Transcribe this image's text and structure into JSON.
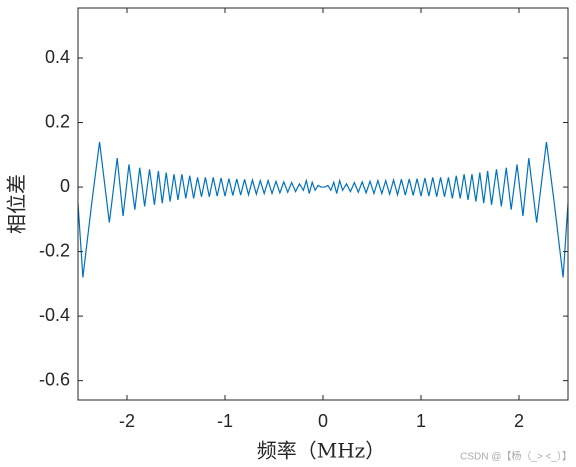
{
  "chart_data": {
    "type": "line",
    "xlabel": "频率（MHz）",
    "ylabel": "相位差",
    "watermark": "CSDN @【杨（_> <_）】",
    "xlim": [
      -2.5,
      2.5
    ],
    "ylim": [
      -0.66,
      0.555
    ],
    "xticks": [
      -2,
      -1,
      0,
      1,
      2
    ],
    "yticks": [
      -0.6,
      -0.4,
      -0.2,
      0,
      0.2,
      0.4
    ],
    "x": [
      -2.5,
      -2.45,
      -2.36,
      -2.28,
      -2.18,
      -2.1,
      -2.04,
      -1.98,
      -1.92,
      -1.87,
      -1.82,
      -1.77,
      -1.72,
      -1.68,
      -1.64,
      -1.6,
      -1.56,
      -1.52,
      -1.48,
      -1.44,
      -1.4,
      -1.36,
      -1.32,
      -1.28,
      -1.24,
      -1.2,
      -1.16,
      -1.12,
      -1.08,
      -1.04,
      -1.0,
      -0.96,
      -0.92,
      -0.88,
      -0.84,
      -0.8,
      -0.76,
      -0.72,
      -0.68,
      -0.64,
      -0.6,
      -0.56,
      -0.52,
      -0.48,
      -0.44,
      -0.4,
      -0.36,
      -0.32,
      -0.28,
      -0.24,
      -0.2,
      -0.17,
      -0.14,
      -0.11,
      -0.08,
      -0.05,
      -0.02,
      0,
      0.02,
      0.05,
      0.08,
      0.11,
      0.14,
      0.17,
      0.2,
      0.24,
      0.28,
      0.32,
      0.36,
      0.4,
      0.44,
      0.48,
      0.52,
      0.56,
      0.6,
      0.64,
      0.68,
      0.72,
      0.76,
      0.8,
      0.84,
      0.88,
      0.92,
      0.96,
      1.0,
      1.04,
      1.08,
      1.12,
      1.16,
      1.2,
      1.24,
      1.28,
      1.32,
      1.36,
      1.4,
      1.44,
      1.48,
      1.52,
      1.56,
      1.6,
      1.64,
      1.68,
      1.72,
      1.77,
      1.82,
      1.87,
      1.92,
      1.98,
      2.04,
      2.1,
      2.18,
      2.28,
      2.36,
      2.45,
      2.5
    ],
    "series": [
      {
        "color": "#0072bd",
        "values": [
          -0.05,
          -0.28,
          -0.05,
          0.14,
          -0.11,
          0.09,
          -0.09,
          0.07,
          -0.07,
          0.06,
          -0.06,
          0.055,
          -0.055,
          0.05,
          -0.05,
          0.045,
          -0.045,
          0.04,
          -0.04,
          0.04,
          -0.035,
          0.035,
          -0.035,
          0.03,
          -0.03,
          0.03,
          -0.03,
          0.03,
          -0.028,
          0.028,
          -0.028,
          0.026,
          -0.026,
          0.025,
          -0.025,
          0.024,
          -0.024,
          0.022,
          -0.022,
          0.02,
          -0.02,
          0.02,
          -0.02,
          0.018,
          -0.018,
          0.016,
          -0.016,
          0.014,
          -0.014,
          0.01,
          -0.01,
          0.02,
          -0.02,
          0.015,
          -0.01,
          0.005,
          0,
          0,
          0,
          0.005,
          -0.01,
          0.015,
          -0.02,
          0.02,
          -0.01,
          0.01,
          -0.014,
          0.014,
          -0.016,
          0.016,
          -0.018,
          0.018,
          -0.02,
          0.02,
          -0.02,
          0.02,
          -0.022,
          0.022,
          -0.024,
          0.024,
          -0.025,
          0.025,
          -0.026,
          0.026,
          -0.028,
          0.028,
          -0.028,
          0.03,
          -0.03,
          0.03,
          -0.03,
          0.03,
          -0.035,
          0.035,
          -0.035,
          0.04,
          -0.04,
          0.04,
          -0.045,
          0.045,
          -0.05,
          0.05,
          -0.055,
          0.055,
          -0.06,
          0.06,
          -0.07,
          0.07,
          -0.09,
          0.09,
          -0.11,
          0.14,
          -0.05,
          -0.28,
          -0.05
        ]
      }
    ]
  }
}
